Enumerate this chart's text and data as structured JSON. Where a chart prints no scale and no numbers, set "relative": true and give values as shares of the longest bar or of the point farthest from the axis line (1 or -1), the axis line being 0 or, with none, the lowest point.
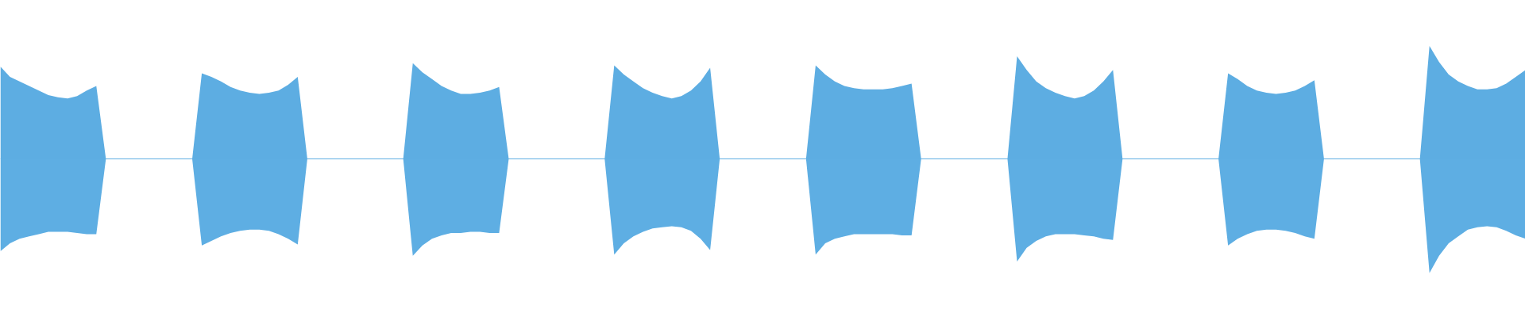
{
  "chart_data": {
    "type": "area",
    "relative": true,
    "grid": false,
    "ref_lines": [
      {
        "axis": "y",
        "value": 0,
        "color": "#5dade2"
      }
    ],
    "categories": [
      null,
      null,
      null,
      null,
      null,
      null,
      null,
      null,
      null,
      null,
      null,
      null,
      null,
      null,
      null,
      null,
      null,
      null,
      null,
      null,
      null,
      null,
      null,
      null,
      null,
      null,
      null,
      null,
      null,
      null,
      null,
      null,
      null,
      null,
      null,
      null,
      null,
      null,
      null,
      null,
      null,
      null,
      null,
      null,
      null,
      null,
      null,
      null,
      null,
      null,
      null,
      null,
      null,
      null,
      null,
      null,
      null,
      null,
      null,
      null,
      null,
      null,
      null,
      null,
      null,
      null,
      null,
      null,
      null,
      null,
      null,
      null,
      null,
      null,
      null,
      null,
      null,
      null,
      null,
      null,
      null,
      null,
      null,
      null,
      null,
      null,
      null,
      null,
      null,
      null,
      null,
      null,
      null,
      null,
      null,
      null,
      null,
      null,
      null,
      null,
      null,
      null,
      null,
      null,
      null,
      null,
      null,
      null,
      null,
      null,
      null,
      null,
      null,
      null,
      null,
      null,
      null,
      null,
      null,
      null,
      null,
      null,
      null,
      null,
      null,
      null,
      null,
      null,
      null,
      null,
      null,
      null,
      null,
      null,
      null,
      null,
      null,
      null,
      null,
      null,
      null,
      null,
      null,
      null,
      null,
      null,
      null,
      null,
      null,
      null,
      null,
      null,
      null,
      null,
      null,
      null,
      null,
      null,
      null,
      null
    ],
    "series": [
      {
        "color": "#5dade2",
        "values": [
          0.81,
          0.72,
          0.68,
          0.64,
          0.6,
          0.56,
          0.54,
          0.53,
          0.55,
          0.6,
          0.64,
          0,
          0,
          0,
          0,
          0,
          0,
          0,
          0,
          0,
          0,
          0.75,
          0.72,
          0.68,
          0.63,
          0.6,
          0.58,
          0.57,
          0.58,
          0.6,
          0.65,
          0.72,
          0,
          0,
          0,
          0,
          0,
          0,
          0,
          0,
          0,
          0,
          0,
          0.84,
          0.76,
          0.7,
          0.64,
          0.6,
          0.57,
          0.57,
          0.58,
          0.6,
          0.63,
          0,
          0,
          0,
          0,
          0,
          0,
          0,
          0,
          0,
          0,
          0,
          0.82,
          0.74,
          0.68,
          0.62,
          0.58,
          0.55,
          0.53,
          0.55,
          0.6,
          0.68,
          0.8,
          0,
          0,
          0,
          0,
          0,
          0,
          0,
          0,
          0,
          0,
          0.82,
          0.74,
          0.68,
          0.64,
          0.62,
          0.61,
          0.61,
          0.61,
          0.62,
          0.64,
          0.66,
          0,
          0,
          0,
          0,
          0,
          0,
          0,
          0,
          0,
          0,
          0.9,
          0.78,
          0.68,
          0.62,
          0.58,
          0.55,
          0.53,
          0.55,
          0.6,
          0.68,
          0.78,
          0,
          0,
          0,
          0,
          0,
          0,
          0,
          0,
          0,
          0,
          0,
          0.75,
          0.7,
          0.64,
          0.6,
          0.58,
          0.57,
          0.58,
          0.6,
          0.64,
          0.69,
          0,
          0,
          0,
          0,
          0,
          0,
          0,
          0,
          0,
          0,
          0,
          0.99,
          0.85,
          0.74,
          0.68,
          0.64,
          0.61,
          0.61,
          0.62,
          0.66,
          0.72,
          0.78
        ]
      },
      {
        "color": "#5eaee3",
        "values": [
          -0.81,
          -0.74,
          -0.7,
          -0.68,
          -0.66,
          -0.64,
          -0.64,
          -0.64,
          -0.65,
          -0.66,
          -0.66,
          0,
          0,
          0,
          0,
          0,
          0,
          0,
          0,
          0,
          0,
          -0.76,
          -0.72,
          -0.68,
          -0.65,
          -0.63,
          -0.62,
          -0.62,
          -0.63,
          -0.66,
          -0.7,
          -0.75,
          0,
          0,
          0,
          0,
          0,
          0,
          0,
          0,
          0,
          0,
          0,
          -0.85,
          -0.76,
          -0.7,
          -0.67,
          -0.65,
          -0.65,
          -0.64,
          -0.64,
          -0.65,
          -0.65,
          0,
          0,
          0,
          0,
          0,
          0,
          0,
          0,
          0,
          0,
          0,
          -0.84,
          -0.74,
          -0.68,
          -0.64,
          -0.61,
          -0.6,
          -0.59,
          -0.6,
          -0.63,
          -0.7,
          -0.8,
          0,
          0,
          0,
          0,
          0,
          0,
          0,
          0,
          0,
          0,
          -0.84,
          -0.74,
          -0.7,
          -0.68,
          -0.66,
          -0.66,
          -0.66,
          -0.66,
          -0.66,
          -0.67,
          -0.67,
          0,
          0,
          0,
          0,
          0,
          0,
          0,
          0,
          0,
          0,
          -0.9,
          -0.78,
          -0.72,
          -0.68,
          -0.66,
          -0.66,
          -0.66,
          -0.67,
          -0.68,
          -0.7,
          -0.71,
          0,
          0,
          0,
          0,
          0,
          0,
          0,
          0,
          0,
          0,
          0,
          -0.76,
          -0.7,
          -0.66,
          -0.63,
          -0.62,
          -0.62,
          -0.63,
          -0.65,
          -0.68,
          -0.7,
          0,
          0,
          0,
          0,
          0,
          0,
          0,
          0,
          0,
          0,
          0,
          -1,
          -0.85,
          -0.74,
          -0.68,
          -0.62,
          -0.6,
          -0.59,
          -0.6,
          -0.63,
          -0.67,
          -0.7
        ]
      }
    ]
  }
}
